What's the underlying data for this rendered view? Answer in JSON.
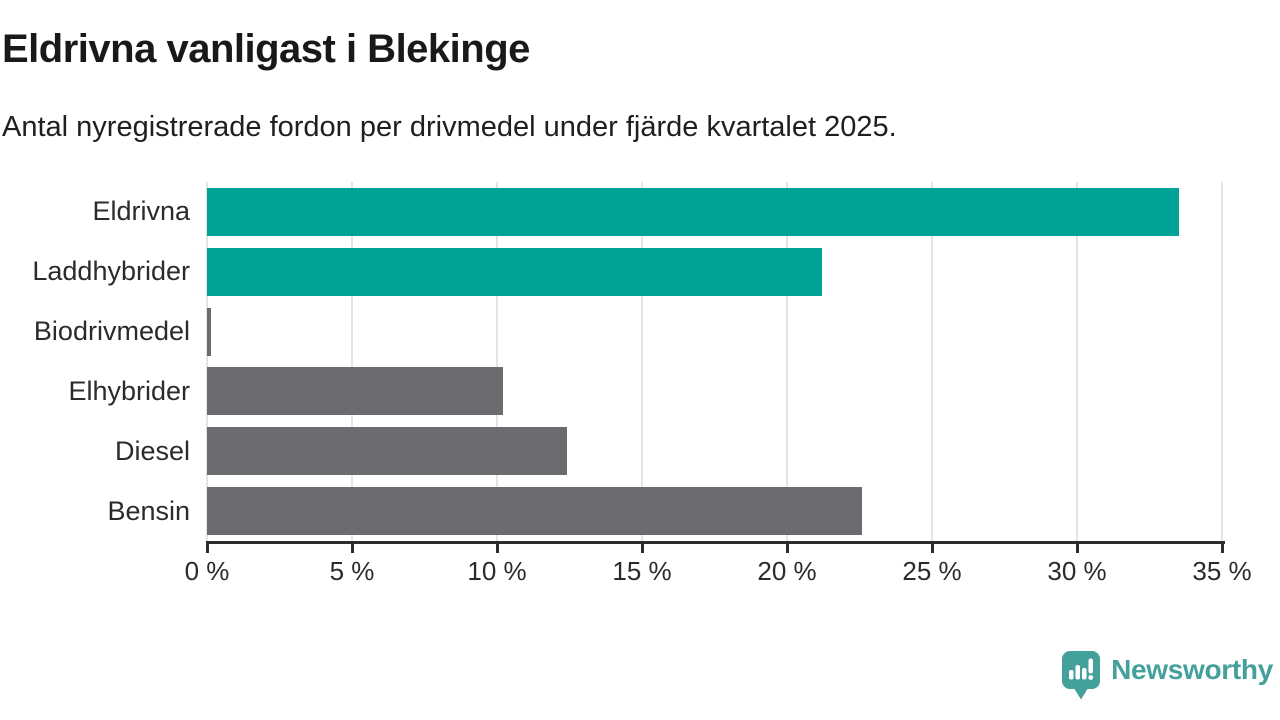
{
  "title": "Eldrivna vanligast i Blekinge",
  "subtitle": "Antal nyregistrerade fordon per drivmedel under fjärde kvartalet 2025.",
  "chart_data": {
    "type": "bar",
    "orientation": "horizontal",
    "title": "Eldrivna vanligast i Blekinge",
    "subtitle": "Antal nyregistrerade fordon per drivmedel under fjärde kvartalet 2025.",
    "categories": [
      "Eldrivna",
      "Laddhybrider",
      "Biodrivmedel",
      "Elhybrider",
      "Diesel",
      "Bensin"
    ],
    "values": [
      33.5,
      21.2,
      0.15,
      10.2,
      12.4,
      22.6
    ],
    "bar_colors": [
      "#00a298",
      "#00a298",
      "#6c6c70",
      "#6c6c70",
      "#6c6c70",
      "#6c6c70"
    ],
    "xlabel": "",
    "ylabel": "",
    "xlim": [
      0,
      35
    ],
    "x_ticks": [
      0,
      5,
      10,
      15,
      20,
      25,
      30,
      35
    ],
    "x_tick_suffix": " %",
    "grid": "vertical-only",
    "legend": "none"
  },
  "colors": {
    "teal_bar": "#00a298",
    "gray_bar": "#6c6c70",
    "gridline": "#e4e4e4",
    "axis": "#2d2d2d",
    "brand": "#43a09a",
    "background": "#ffffff"
  },
  "footer": {
    "brand": "Newsworthy",
    "logo_icon": "newsworthy-speech-bubble-bar-chart-icon"
  }
}
